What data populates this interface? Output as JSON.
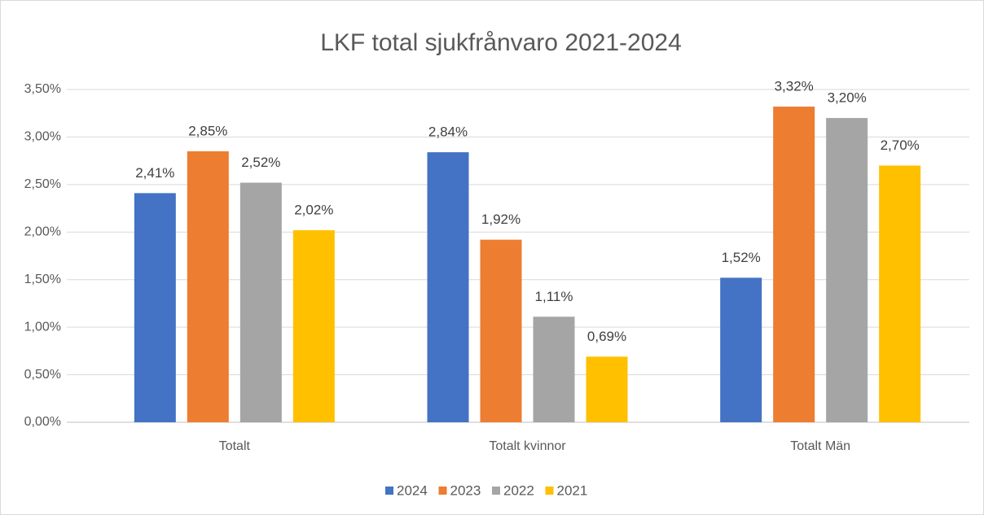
{
  "chart_data": {
    "type": "bar",
    "title": "LKF total sjukfrånvaro 2021-2024",
    "categories": [
      "Totalt",
      "Totalt kvinnor",
      "Totalt Män"
    ],
    "series": [
      {
        "name": "2024",
        "color": "#4472c4",
        "values": [
          2.41,
          2.84,
          1.52
        ],
        "value_labels": [
          "2,41%",
          "2,84%",
          "1,52%"
        ]
      },
      {
        "name": "2023",
        "color": "#ed7d31",
        "values": [
          2.85,
          1.92,
          3.32
        ],
        "value_labels": [
          "2,85%",
          "1,92%",
          "3,32%"
        ]
      },
      {
        "name": "2022",
        "color": "#a5a5a5",
        "values": [
          2.52,
          1.11,
          3.2
        ],
        "value_labels": [
          "2,52%",
          "1,11%",
          "3,20%"
        ]
      },
      {
        "name": "2021",
        "color": "#ffc000",
        "values": [
          2.02,
          0.69,
          2.7
        ],
        "value_labels": [
          "2,02%",
          "0,69%",
          "2,70%"
        ]
      }
    ],
    "ylim": [
      0,
      3.5
    ],
    "yticks": [
      {
        "value": 0,
        "label": "0,00%"
      },
      {
        "value": 0.5,
        "label": "0,50%"
      },
      {
        "value": 1,
        "label": "1,00%"
      },
      {
        "value": 1.5,
        "label": "1,50%"
      },
      {
        "value": 2,
        "label": "2,00%"
      },
      {
        "value": 2.5,
        "label": "2,50%"
      },
      {
        "value": 3,
        "label": "3,00%"
      },
      {
        "value": 3.5,
        "label": "3,50%"
      }
    ],
    "grid": true,
    "legend": "bottom"
  }
}
